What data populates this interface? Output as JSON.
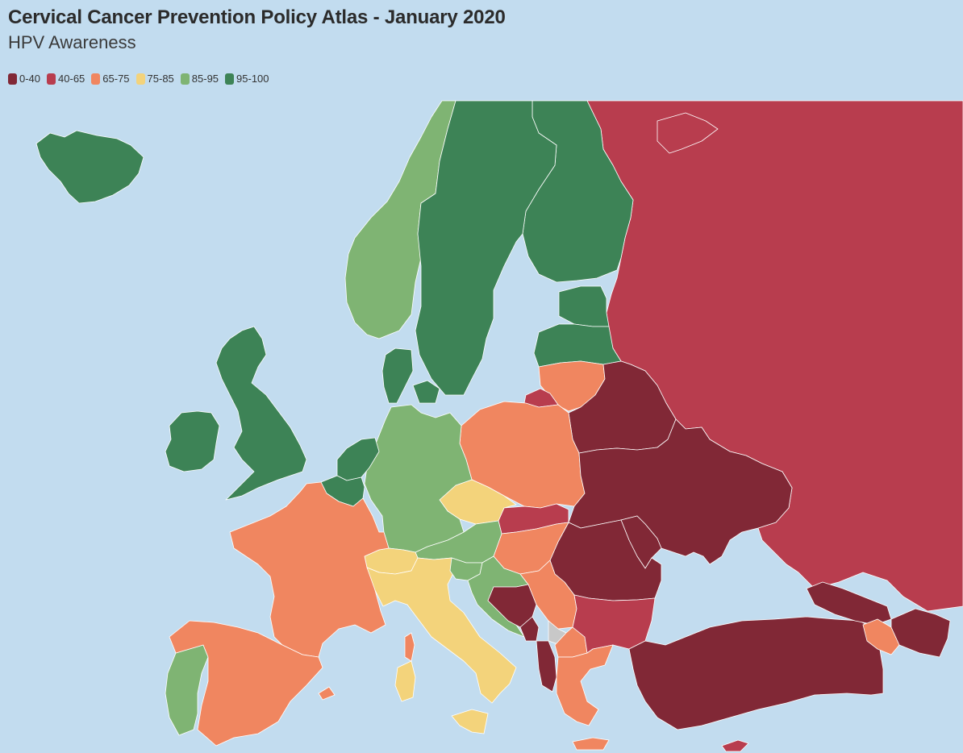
{
  "header": {
    "title": "Cervical Cancer Prevention Policy Atlas - January 2020",
    "subtitle": "HPV Awareness"
  },
  "legend": [
    {
      "label": "0-40",
      "color": "#812836"
    },
    {
      "label": "40-65",
      "color": "#b83d4e"
    },
    {
      "label": "65-75",
      "color": "#f08660"
    },
    {
      "label": "75-85",
      "color": "#f3d37b"
    },
    {
      "label": "85-95",
      "color": "#7fb473"
    },
    {
      "label": "95-100",
      "color": "#3d8356"
    }
  ],
  "map": {
    "background": "#c2dcef",
    "no_data_color": "#c8c8c8",
    "countries": [
      {
        "name": "Iceland",
        "class": "95-100"
      },
      {
        "name": "Ireland",
        "class": "95-100"
      },
      {
        "name": "United Kingdom",
        "class": "95-100"
      },
      {
        "name": "Netherlands",
        "class": "95-100"
      },
      {
        "name": "Belgium",
        "class": "95-100"
      },
      {
        "name": "Denmark",
        "class": "95-100"
      },
      {
        "name": "Sweden",
        "class": "95-100"
      },
      {
        "name": "Finland",
        "class": "95-100"
      },
      {
        "name": "Estonia",
        "class": "95-100"
      },
      {
        "name": "Latvia",
        "class": "95-100"
      },
      {
        "name": "Norway",
        "class": "85-95"
      },
      {
        "name": "Germany",
        "class": "85-95"
      },
      {
        "name": "Austria",
        "class": "85-95"
      },
      {
        "name": "Slovenia",
        "class": "85-95"
      },
      {
        "name": "Croatia",
        "class": "85-95"
      },
      {
        "name": "Portugal",
        "class": "85-95"
      },
      {
        "name": "Czechia",
        "class": "75-85"
      },
      {
        "name": "Switzerland",
        "class": "75-85"
      },
      {
        "name": "Italy",
        "class": "75-85"
      },
      {
        "name": "Sardinia",
        "class": "75-85"
      },
      {
        "name": "Sicily",
        "class": "75-85"
      },
      {
        "name": "France",
        "class": "65-75"
      },
      {
        "name": "Corsica",
        "class": "65-75"
      },
      {
        "name": "Spain",
        "class": "65-75"
      },
      {
        "name": "Balearic Islands",
        "class": "65-75"
      },
      {
        "name": "Poland",
        "class": "65-75"
      },
      {
        "name": "Lithuania",
        "class": "65-75"
      },
      {
        "name": "Hungary",
        "class": "65-75"
      },
      {
        "name": "Serbia",
        "class": "65-75"
      },
      {
        "name": "North Macedonia",
        "class": "65-75"
      },
      {
        "name": "Greece",
        "class": "65-75"
      },
      {
        "name": "Crete",
        "class": "65-75"
      },
      {
        "name": "Armenia",
        "class": "65-75"
      },
      {
        "name": "Slovakia",
        "class": "40-65"
      },
      {
        "name": "Bulgaria",
        "class": "40-65"
      },
      {
        "name": "Russia",
        "class": "40-65"
      },
      {
        "name": "Kaliningrad",
        "class": "40-65"
      },
      {
        "name": "Cyprus",
        "class": "40-65"
      },
      {
        "name": "Belarus",
        "class": "0-40"
      },
      {
        "name": "Ukraine",
        "class": "0-40"
      },
      {
        "name": "Moldova",
        "class": "0-40"
      },
      {
        "name": "Romania",
        "class": "0-40"
      },
      {
        "name": "Bosnia and Herzegovina",
        "class": "0-40"
      },
      {
        "name": "Montenegro",
        "class": "0-40"
      },
      {
        "name": "Albania",
        "class": "0-40"
      },
      {
        "name": "Turkey",
        "class": "0-40"
      },
      {
        "name": "Georgia",
        "class": "0-40"
      },
      {
        "name": "Azerbaijan",
        "class": "0-40"
      },
      {
        "name": "Kosovo",
        "class": "no-data"
      }
    ]
  }
}
